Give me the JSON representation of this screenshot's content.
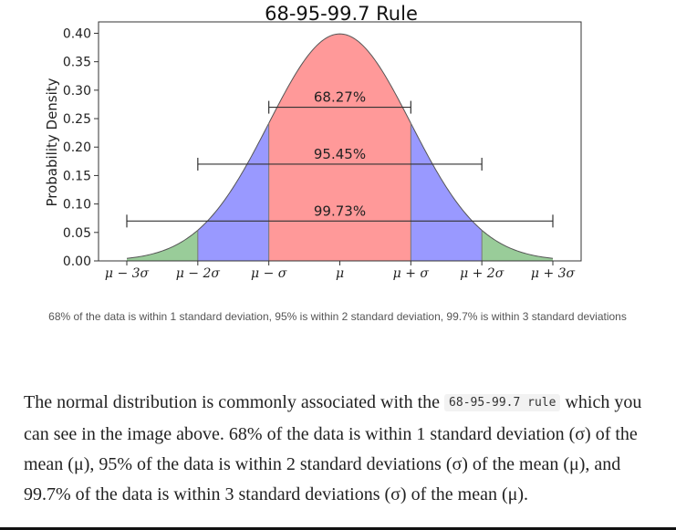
{
  "chart_data": {
    "type": "area",
    "title": "68-95-99.7 Rule",
    "ylabel": "Probability Density",
    "xlabel": "",
    "xlim": [
      -3,
      3
    ],
    "ylim": [
      0,
      0.42
    ],
    "x_ticks": [
      -3,
      -2,
      -1,
      0,
      1,
      2,
      3
    ],
    "x_tick_labels": [
      "μ − 3σ",
      "μ − 2σ",
      "μ − σ",
      "μ",
      "μ + σ",
      "μ + 2σ",
      "μ + 3σ"
    ],
    "y_ticks": [
      0.0,
      0.05,
      0.1,
      0.15,
      0.2,
      0.25,
      0.3,
      0.35,
      0.4
    ],
    "y_tick_labels": [
      "0.00",
      "0.05",
      "0.10",
      "0.15",
      "0.20",
      "0.25",
      "0.30",
      "0.35",
      "0.40"
    ],
    "curve": "standard normal density",
    "regions": [
      {
        "from": -1,
        "to": 1,
        "color": "#ff9999"
      },
      {
        "from": -2,
        "to": -1,
        "color": "#9999ff"
      },
      {
        "from": 1,
        "to": 2,
        "color": "#9999ff"
      },
      {
        "from": -3,
        "to": -2,
        "color": "#99cc99"
      },
      {
        "from": 2,
        "to": 3,
        "color": "#99cc99"
      }
    ],
    "intervals": [
      {
        "from": -1,
        "to": 1,
        "y": 0.27,
        "label": "68.27%"
      },
      {
        "from": -2,
        "to": 2,
        "y": 0.17,
        "label": "95.45%"
      },
      {
        "from": -3,
        "to": 3,
        "y": 0.07,
        "label": "99.73%"
      }
    ],
    "grid": false
  },
  "caption": "68% of the data is within 1 standard deviation, 95% is within 2 standard deviation, 99.7% is within 3 standard deviations",
  "paragraph": {
    "before_code": "The normal distribution is commonly associated with the ",
    "code": "68-95-99.7 rule",
    "after_code": " which you can see in the image above. 68% of the data is within 1 standard deviation (σ) of the mean (μ), 95% of the data is within 2 standard deviations (σ) of the mean (μ), and 99.7% of the data is within 3 standard deviations (σ) of the mean (μ)."
  }
}
